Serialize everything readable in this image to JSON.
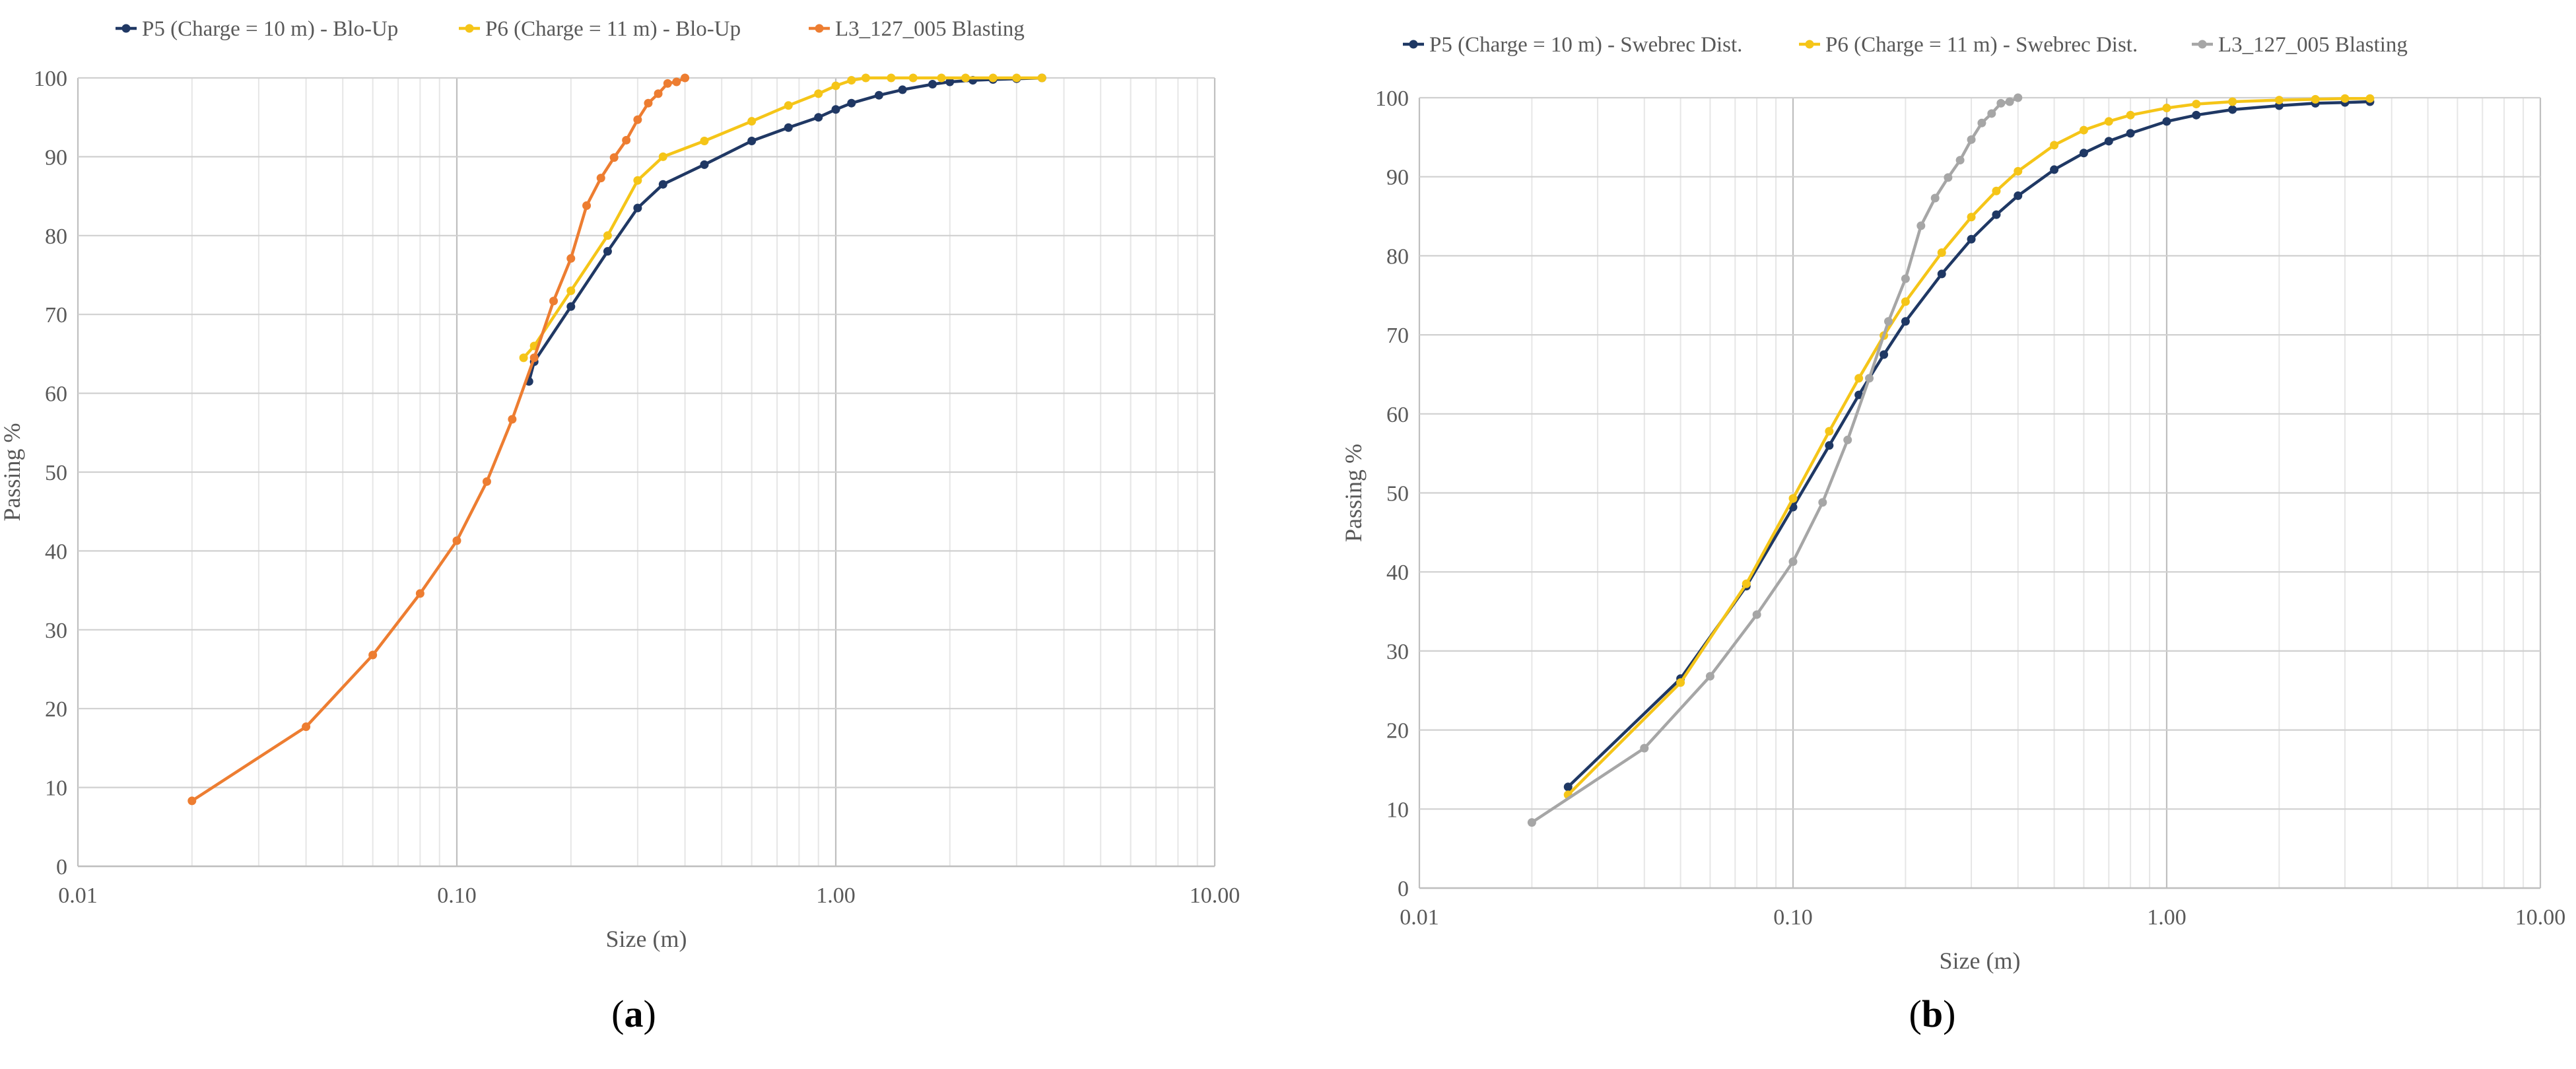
{
  "chart_data": [
    {
      "type": "line",
      "panel_label": "a",
      "xlabel": "Size (m)",
      "ylabel": "Passing %",
      "x_scale": "log",
      "xlim": [
        0.01,
        10
      ],
      "ylim": [
        0,
        100
      ],
      "x_ticks": [
        "0.01",
        "0.10",
        "1.00",
        "10.00"
      ],
      "y_ticks": [
        "0",
        "10",
        "20",
        "30",
        "40",
        "50",
        "60",
        "70",
        "80",
        "90",
        "100"
      ],
      "grid": true,
      "legend_position": "top",
      "series": [
        {
          "name": "P5 (Charge = 10 m) - Blo-Up",
          "color": "#203864",
          "x": [
            0.155,
            0.16,
            0.2,
            0.25,
            0.3,
            0.35,
            0.45,
            0.6,
            0.75,
            0.9,
            1.0,
            1.1,
            1.3,
            1.5,
            1.8,
            2.0,
            2.3,
            2.6,
            3.0,
            3.5
          ],
          "y": [
            61.5,
            64,
            71,
            78,
            83.5,
            86.5,
            89,
            92,
            93.7,
            95,
            96,
            96.8,
            97.8,
            98.5,
            99.2,
            99.5,
            99.7,
            99.8,
            99.9,
            100
          ]
        },
        {
          "name": "P6 (Charge = 11 m) - Blo-Up",
          "color": "#f5c518",
          "x": [
            0.15,
            0.16,
            0.2,
            0.25,
            0.3,
            0.35,
            0.45,
            0.6,
            0.75,
            0.9,
            1.0,
            1.1,
            1.2,
            1.4,
            1.6,
            1.9,
            2.2,
            2.6,
            3.0,
            3.5
          ],
          "y": [
            64.5,
            66,
            73,
            80,
            87,
            90,
            92,
            94.5,
            96.5,
            98,
            99,
            99.7,
            100,
            100,
            100,
            100,
            100,
            100,
            100,
            100
          ]
        },
        {
          "name": "L3_127_005 Blasting",
          "color": "#ed7d31",
          "x": [
            0.02,
            0.04,
            0.06,
            0.08,
            0.1,
            0.12,
            0.14,
            0.16,
            0.18,
            0.2,
            0.22,
            0.24,
            0.26,
            0.28,
            0.3,
            0.32,
            0.34,
            0.36,
            0.38,
            0.4
          ],
          "y": [
            8.3,
            17.7,
            26.8,
            34.6,
            41.3,
            48.8,
            56.7,
            64.5,
            71.7,
            77.1,
            83.8,
            87.3,
            89.9,
            92.1,
            94.7,
            96.8,
            98.0,
            99.3,
            99.5,
            100
          ]
        }
      ]
    },
    {
      "type": "line",
      "panel_label": "b",
      "xlabel": "Size (m)",
      "ylabel": "Passing %",
      "x_scale": "log",
      "xlim": [
        0.01,
        10
      ],
      "ylim": [
        0,
        100
      ],
      "x_ticks": [
        "0.01",
        "0.10",
        "1.00",
        "10.00"
      ],
      "y_ticks": [
        "0",
        "10",
        "20",
        "30",
        "40",
        "50",
        "60",
        "70",
        "80",
        "90",
        "100"
      ],
      "grid": true,
      "legend_position": "top",
      "series": [
        {
          "name": "P5 (Charge = 10 m) - Swebrec Dist.",
          "color": "#1f3864",
          "x": [
            0.025,
            0.05,
            0.075,
            0.1,
            0.125,
            0.15,
            0.175,
            0.2,
            0.25,
            0.3,
            0.35,
            0.4,
            0.5,
            0.6,
            0.7,
            0.8,
            1.0,
            1.2,
            1.5,
            2.0,
            2.5,
            3.0,
            3.5
          ],
          "y": [
            12.8,
            26.5,
            38.2,
            48.2,
            56.0,
            62.4,
            67.5,
            71.7,
            77.7,
            82.1,
            85.2,
            87.6,
            90.9,
            93.0,
            94.5,
            95.5,
            97.0,
            97.8,
            98.5,
            99.0,
            99.3,
            99.4,
            99.5
          ]
        },
        {
          "name": "P6 (Charge = 11 m) - Swebrec Dist.",
          "color": "#f5c518",
          "x": [
            0.025,
            0.05,
            0.075,
            0.1,
            0.125,
            0.15,
            0.175,
            0.2,
            0.25,
            0.3,
            0.35,
            0.4,
            0.5,
            0.6,
            0.7,
            0.8,
            1.0,
            1.2,
            1.5,
            2.0,
            2.5,
            3.0,
            3.5
          ],
          "y": [
            11.8,
            26.0,
            38.5,
            49.3,
            57.8,
            64.5,
            69.9,
            74.2,
            80.4,
            84.9,
            88.2,
            90.7,
            94.0,
            95.9,
            97.0,
            97.8,
            98.7,
            99.2,
            99.5,
            99.7,
            99.8,
            99.9,
            99.9
          ]
        },
        {
          "name": "L3_127_005 Blasting",
          "color": "#a6a6a6",
          "x": [
            0.02,
            0.04,
            0.06,
            0.08,
            0.1,
            0.12,
            0.14,
            0.16,
            0.18,
            0.2,
            0.22,
            0.24,
            0.26,
            0.28,
            0.3,
            0.32,
            0.34,
            0.36,
            0.38,
            0.4
          ],
          "y": [
            8.3,
            17.7,
            26.8,
            34.6,
            41.3,
            48.8,
            56.7,
            64.5,
            71.7,
            77.1,
            83.8,
            87.3,
            89.9,
            92.1,
            94.7,
            96.8,
            98.0,
            99.3,
            99.5,
            100
          ]
        }
      ]
    }
  ]
}
